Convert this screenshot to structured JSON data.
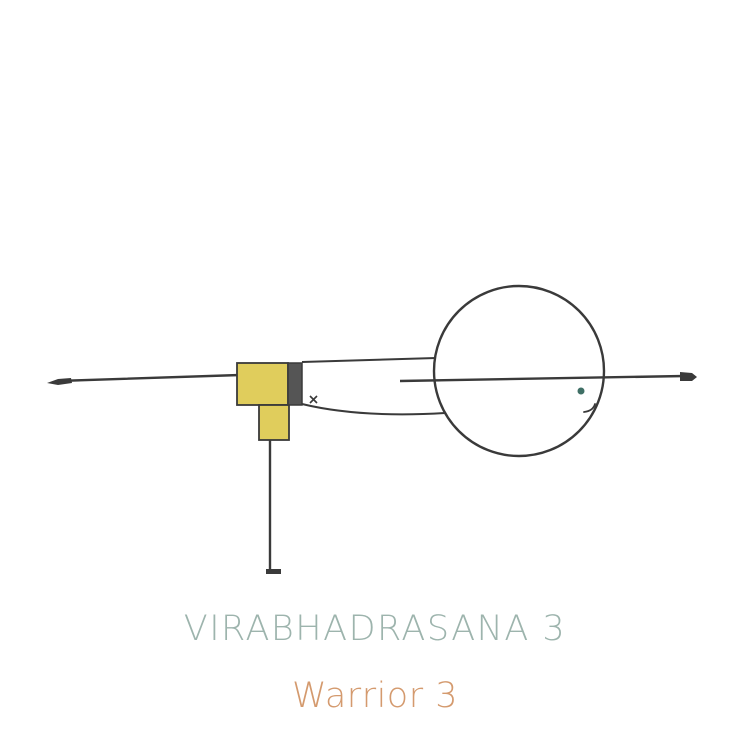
{
  "pose": {
    "sanskrit_name": "VIRABHADRASANA 3",
    "english_name": "Warrior 3"
  },
  "colors": {
    "sanskrit_text": "#9db4ad",
    "english_text": "#d49a6e",
    "line": "#3a3a3a",
    "shorts": "#e0cd5c",
    "belt": "#555555",
    "eye": "#3f6f65"
  },
  "icons": {
    "figure": "warrior-3-stick-figure"
  }
}
